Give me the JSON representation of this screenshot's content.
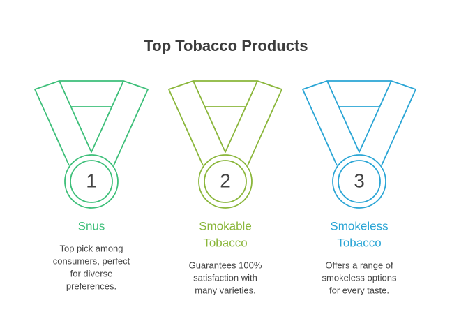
{
  "title": "Top Tobacco Products",
  "items": [
    {
      "number": "1",
      "color": "#3dbf79",
      "label": [
        "Snus"
      ],
      "description": [
        "Top pick among",
        "consumers, perfect",
        "for diverse",
        "preferences."
      ]
    },
    {
      "number": "2",
      "color": "#8ab63a",
      "label": [
        "Smokable",
        "Tobacco"
      ],
      "description": [
        "Guarantees 100%",
        "satisfaction with",
        "many varieties."
      ]
    },
    {
      "number": "3",
      "color": "#2aa5d5",
      "label": [
        "Smokeless",
        "Tobacco"
      ],
      "description": [
        "Offers a range of",
        "smokeless options",
        "for every taste."
      ]
    }
  ]
}
